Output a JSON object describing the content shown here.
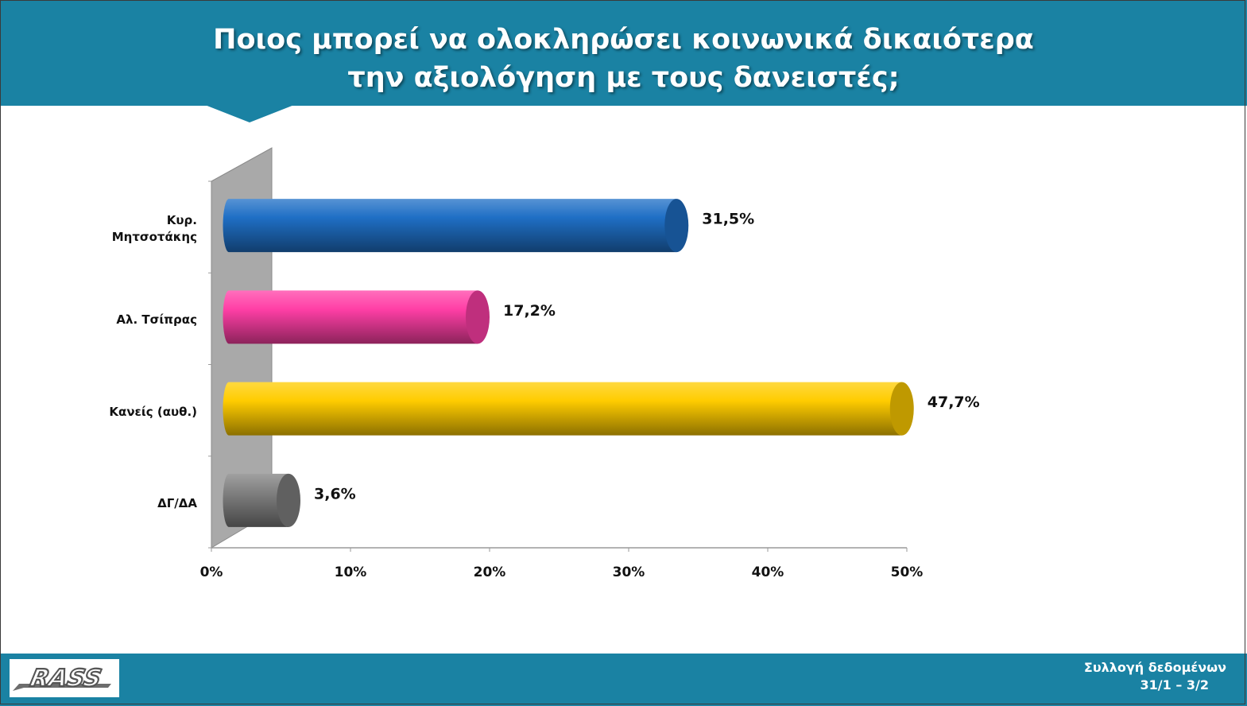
{
  "title": {
    "line1": "Ποιος μπορεί να ολοκληρώσει κοινωνικά δικαιότερα",
    "line2": "την αξιολόγηση με τους δανειστές;"
  },
  "footer": {
    "logo_text": "RASS",
    "collection_label": "Συλλογή δεδομένων",
    "collection_dates": "31/1 – 3/2"
  },
  "chart_data": {
    "type": "bar",
    "orientation": "horizontal",
    "categories": [
      "Κυρ. Μητσοτάκης",
      "Αλ. Τσίπρας",
      "Κανείς (αυθ.)",
      "ΔΓ/ΔΑ"
    ],
    "category_lines": [
      [
        "Κυρ.",
        "Μητσοτάκης"
      ],
      [
        "Αλ. Τσίπρας"
      ],
      [
        "Κανείς (αυθ.)"
      ],
      [
        "ΔΓ/ΔΑ"
      ]
    ],
    "values": [
      31.5,
      17.2,
      47.7,
      3.6
    ],
    "value_labels": [
      "31,5%",
      "17,2%",
      "47,7%",
      "3,6%"
    ],
    "colors": [
      "#1f6fc5",
      "#ff3fa6",
      "#ffcc00",
      "#808080"
    ],
    "xlim": [
      0,
      50
    ],
    "ticks": [
      0,
      10,
      20,
      30,
      40,
      50
    ],
    "tick_labels": [
      "0%",
      "10%",
      "20%",
      "30%",
      "40%",
      "50%"
    ],
    "grid": false,
    "legend": "none"
  }
}
